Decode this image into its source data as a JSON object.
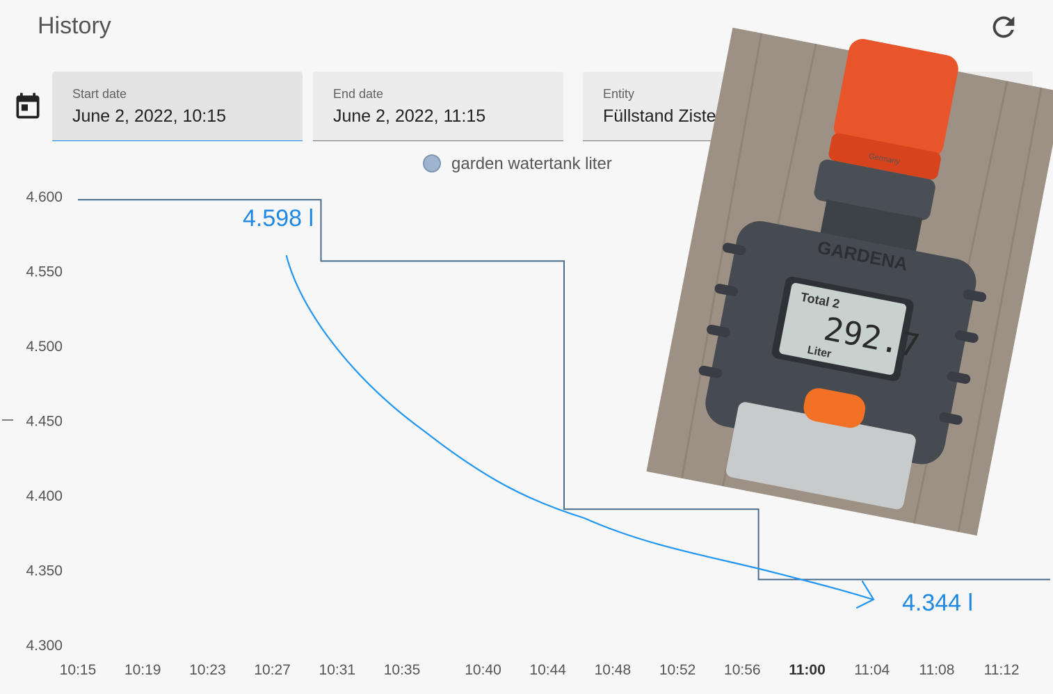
{
  "header": {
    "title": "History",
    "refresh_icon": "refresh-icon"
  },
  "controls": {
    "calendar_icon": "calendar-icon",
    "start": {
      "label": "Start date",
      "value": "June 2, 2022, 10:15"
    },
    "end": {
      "label": "End date",
      "value": "June 2, 2022, 11:15"
    },
    "entity": {
      "label": "Entity",
      "value": "Füllstand Zisterne"
    }
  },
  "colors": {
    "line": "#4a6c8c",
    "annotation": "#1e88e5",
    "legend_dot": "#9fb5cf"
  },
  "chart_data": {
    "type": "line",
    "step": true,
    "legend_placement": "top-center",
    "grid": false,
    "series": [
      {
        "name": "garden watertank liter",
        "points": [
          {
            "x": "10:15",
            "y": 4.598
          },
          {
            "x": "10:30",
            "y": 4.598
          },
          {
            "x": "10:30",
            "y": 4.557
          },
          {
            "x": "10:45",
            "y": 4.557
          },
          {
            "x": "10:45",
            "y": 4.391
          },
          {
            "x": "10:57",
            "y": 4.391
          },
          {
            "x": "10:57",
            "y": 4.344
          },
          {
            "x": "11:15",
            "y": 4.344
          }
        ]
      }
    ],
    "ylim": [
      4.3,
      4.6
    ],
    "yticks": [
      "4.600",
      "4.550",
      "4.500",
      "4.450",
      "4.400",
      "4.350",
      "4.300"
    ],
    "xticks": [
      {
        "label": "10:15"
      },
      {
        "label": "10:19"
      },
      {
        "label": "10:23"
      },
      {
        "label": "10:27"
      },
      {
        "label": "10:31"
      },
      {
        "label": "10:35"
      },
      {
        "label": "10:40"
      },
      {
        "label": "10:44"
      },
      {
        "label": "10:48"
      },
      {
        "label": "10:52"
      },
      {
        "label": "10:56"
      },
      {
        "label": "11:00",
        "bold": true
      },
      {
        "label": "11:04"
      },
      {
        "label": "11:08"
      },
      {
        "label": "11:12"
      }
    ],
    "annotations": [
      "4.598 l",
      "4.344 l"
    ]
  },
  "photo": {
    "brand": "GARDENA",
    "display_label": "Total 2",
    "display_value": "292.7",
    "display_unit": "Liter",
    "stamp": "Germany"
  }
}
